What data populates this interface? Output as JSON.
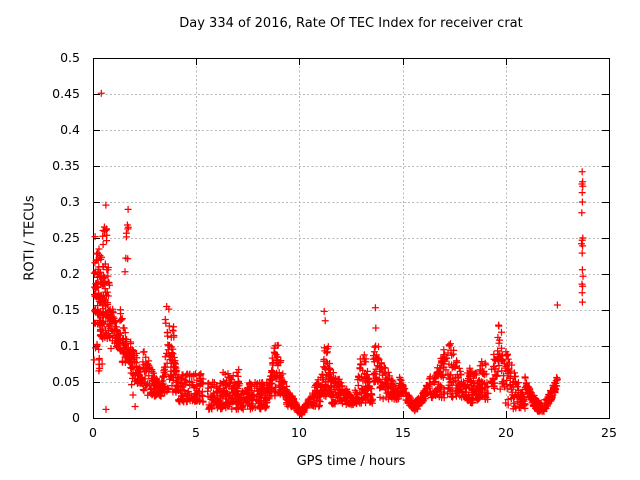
{
  "colors": {
    "background": "#ffffff",
    "marker": "#ff0000",
    "frame": "#000000",
    "grid": "#b9b9b9",
    "text": "#000000"
  },
  "chart_data": {
    "type": "scatter",
    "title": "Day 334 of 2016, Rate Of TEC Index for receiver crat",
    "xlabel": "GPS time / hours",
    "ylabel": "ROTI / TECUs",
    "xlim": [
      0,
      25
    ],
    "ylim": [
      0,
      0.5
    ],
    "xticks": {
      "values": [
        0,
        5,
        10,
        15,
        20,
        25
      ],
      "labels": [
        "0",
        "5",
        "10",
        "15",
        "20",
        "25"
      ]
    },
    "yticks": {
      "values": [
        0,
        0.05,
        0.1,
        0.15,
        0.2,
        0.25,
        0.3,
        0.35,
        0.4,
        0.45,
        0.5
      ],
      "labels": [
        "0",
        "0.05",
        "0.1",
        "0.15",
        "0.2",
        "0.25",
        "0.3",
        "0.35",
        "0.4",
        "0.45",
        "0.5"
      ]
    },
    "grid": true,
    "legend": "none",
    "marker": {
      "shape": "plus",
      "color": "#ff0000",
      "size": 7
    },
    "seed": 20161129,
    "clusters": [
      {
        "t": [
          0.05,
          0.42
        ],
        "v": [
          0.13,
          0.235
        ],
        "n": 70,
        "shape": "uniform"
      },
      {
        "t": [
          0.05,
          0.32
        ],
        "v": [
          0.05,
          0.12
        ],
        "n": 10,
        "shape": "uniform"
      },
      {
        "t": [
          0.35,
          0.8
        ],
        "v": [
          0.11,
          0.215
        ],
        "n": 80,
        "shape": "uniform"
      },
      {
        "t": [
          0.45,
          0.7
        ],
        "v": [
          0.24,
          0.302
        ],
        "n": 10,
        "shape": "uniform"
      },
      {
        "t": [
          0.8,
          1.3
        ],
        "v": [
          0.095,
          0.18
        ],
        "n": 60,
        "shape": "decay"
      },
      {
        "t": [
          1.3,
          1.8
        ],
        "v": [
          0.075,
          0.155
        ],
        "n": 55,
        "shape": "decay"
      },
      {
        "t": [
          1.55,
          1.72
        ],
        "v": [
          0.2,
          0.295
        ],
        "n": 9,
        "shape": "uniform"
      },
      {
        "t": [
          1.8,
          2.4
        ],
        "v": [
          0.045,
          0.125
        ],
        "n": 60,
        "shape": "decay"
      },
      {
        "t": [
          2.4,
          3.3
        ],
        "v": [
          0.03,
          0.1
        ],
        "n": 85,
        "shape": "decay"
      },
      {
        "t": [
          3.3,
          4.15
        ],
        "v": [
          0.035,
          0.115
        ],
        "n": 95,
        "shape": "bump"
      },
      {
        "t": [
          3.5,
          3.7
        ],
        "v": [
          0.11,
          0.155
        ],
        "n": 8,
        "shape": "uniform"
      },
      {
        "t": [
          3.85,
          3.98
        ],
        "v": [
          0.1,
          0.13
        ],
        "n": 5,
        "shape": "uniform"
      },
      {
        "t": [
          4.15,
          5.35
        ],
        "v": [
          0.022,
          0.062
        ],
        "n": 115,
        "shape": "uniform"
      },
      {
        "t": [
          5.55,
          8.45
        ],
        "v": [
          0.012,
          0.05
        ],
        "n": 260,
        "shape": "uniform"
      },
      {
        "t": [
          6.3,
          7.1
        ],
        "v": [
          0.048,
          0.068
        ],
        "n": 14,
        "shape": "uniform"
      },
      {
        "t": [
          8.45,
          9.35
        ],
        "v": [
          0.03,
          0.105
        ],
        "n": 95,
        "shape": "bump"
      },
      {
        "t": [
          9.35,
          9.7
        ],
        "v": [
          0.015,
          0.055
        ],
        "n": 40,
        "shape": "decay"
      },
      {
        "t": [
          9.65,
          10.5
        ],
        "v": [
          0.004,
          0.032
        ],
        "n": 75,
        "shape": "u"
      },
      {
        "t": [
          10.5,
          11.05
        ],
        "v": [
          0.015,
          0.075
        ],
        "n": 55,
        "shape": "rise"
      },
      {
        "t": [
          11.05,
          11.55
        ],
        "v": [
          0.03,
          0.118
        ],
        "n": 65,
        "shape": "bump"
      },
      {
        "t": [
          11.55,
          12.65
        ],
        "v": [
          0.018,
          0.07
        ],
        "n": 100,
        "shape": "decay"
      },
      {
        "t": [
          12.65,
          13.55
        ],
        "v": [
          0.02,
          0.092
        ],
        "n": 95,
        "shape": "bump"
      },
      {
        "t": [
          13.58,
          13.85
        ],
        "v": [
          0.05,
          0.1
        ],
        "n": 25,
        "shape": "uniform"
      },
      {
        "t": [
          13.85,
          14.85
        ],
        "v": [
          0.025,
          0.088
        ],
        "n": 95,
        "shape": "decay"
      },
      {
        "t": [
          14.85,
          16.35
        ],
        "v": [
          0.01,
          0.058
        ],
        "n": 135,
        "shape": "u"
      },
      {
        "t": [
          16.35,
          18.1
        ],
        "v": [
          0.028,
          0.105
        ],
        "n": 155,
        "shape": "bump"
      },
      {
        "t": [
          18.1,
          18.7
        ],
        "v": [
          0.02,
          0.07
        ],
        "n": 60,
        "shape": "uniform"
      },
      {
        "t": [
          18.65,
          19.15
        ],
        "v": [
          0.025,
          0.1
        ],
        "n": 45,
        "shape": "bump"
      },
      {
        "t": [
          19.3,
          19.95
        ],
        "v": [
          0.04,
          0.09
        ],
        "n": 40,
        "shape": "uniform"
      },
      {
        "t": [
          19.6,
          19.8
        ],
        "v": [
          0.07,
          0.128
        ],
        "n": 12,
        "shape": "uniform"
      },
      {
        "t": [
          19.95,
          20.95
        ],
        "v": [
          0.012,
          0.1
        ],
        "n": 85,
        "shape": "decay"
      },
      {
        "t": [
          20.9,
          22.5
        ],
        "v": [
          0.006,
          0.06
        ],
        "n": 160,
        "shape": "u"
      }
    ],
    "notable_points": [
      [
        0.4,
        0.451
      ],
      [
        0.1,
        0.252
      ],
      [
        0.44,
        0.075
      ],
      [
        0.63,
        0.012
      ],
      [
        1.94,
        0.032
      ],
      [
        2.04,
        0.016
      ],
      [
        11.2,
        0.148
      ],
      [
        11.25,
        0.135
      ],
      [
        13.68,
        0.153
      ],
      [
        13.7,
        0.125
      ],
      [
        13.69,
        0.1
      ],
      [
        19.65,
        0.129
      ],
      [
        22.5,
        0.157
      ],
      [
        23.7,
        0.342
      ],
      [
        23.72,
        0.328
      ],
      [
        23.69,
        0.325
      ],
      [
        23.73,
        0.322
      ],
      [
        23.7,
        0.313
      ],
      [
        23.71,
        0.3
      ],
      [
        23.68,
        0.285
      ],
      [
        23.73,
        0.25
      ],
      [
        23.7,
        0.247
      ],
      [
        23.67,
        0.242
      ],
      [
        23.72,
        0.239
      ],
      [
        23.7,
        0.229
      ],
      [
        23.71,
        0.206
      ],
      [
        23.74,
        0.197
      ],
      [
        23.69,
        0.186
      ],
      [
        23.72,
        0.183
      ],
      [
        23.7,
        0.174
      ],
      [
        23.71,
        0.161
      ]
    ]
  }
}
